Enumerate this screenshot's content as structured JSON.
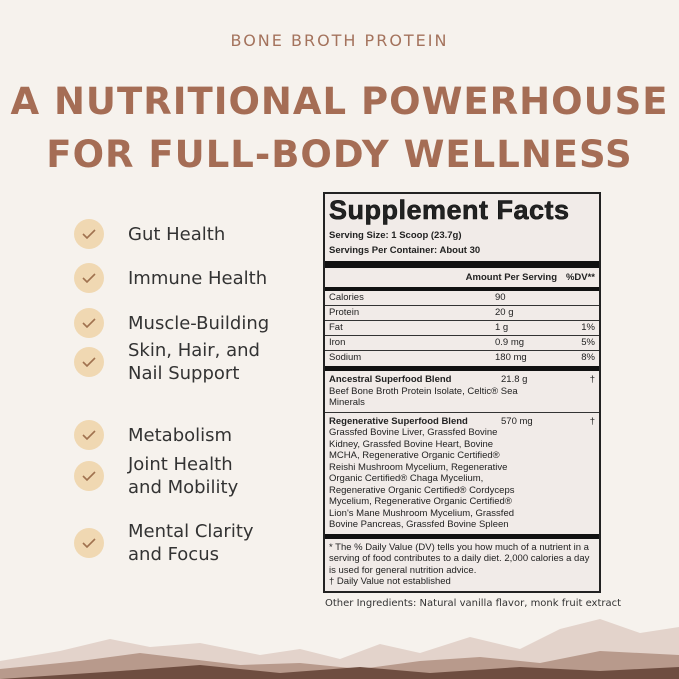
{
  "eyebrow": "BONE BROTH PROTEIN",
  "headline": [
    "A NUTRITIONAL POWERHOUSE",
    "FOR FULL-BODY WELLNESS"
  ],
  "benefits": [
    "Gut Health",
    "Immune Health",
    "Muscle-Building",
    "Skin, Hair, and\nNail Support",
    "Metabolism",
    "Joint Health\nand Mobility",
    "Mental Clarity\nand Focus"
  ],
  "icons": {
    "benefit": "check-icon"
  },
  "colors": {
    "accent": "#a56d55",
    "check_bg": "#f0d8b2",
    "check": "#a0724f"
  },
  "facts": {
    "title": "Supplement Facts",
    "serving_size": "Serving Size: 1 Scoop (23.7g)",
    "servings_per_container": "Servings Per Container: About 30",
    "amount_header": "Amount Per Serving",
    "dv_header": "%DV**",
    "nutrients": [
      {
        "name": "Calories",
        "amount": "90",
        "dv": ""
      },
      {
        "name": "Protein",
        "amount": "20 g",
        "dv": ""
      },
      {
        "name": "Fat",
        "amount": "1 g",
        "dv": "1%"
      },
      {
        "name": "Iron",
        "amount": "0.9 mg",
        "dv": "5%"
      },
      {
        "name": "Sodium",
        "amount": "180 mg",
        "dv": "8%"
      }
    ],
    "blends": [
      {
        "name": "Ancestral Superfood Blend",
        "amount": "21.8 g",
        "dv": "†",
        "ingredients": "Beef Bone Broth Protein Isolate, Celtic® Sea Minerals"
      },
      {
        "name": "Regenerative Superfood Blend",
        "amount": "570 mg",
        "dv": "†",
        "ingredients": "Grassfed Bovine Liver, Grassfed Bovine Kidney, Grassfed Bovine Heart, Bovine MCHA, Regenerative Organic Certified® Reishi Mushroom Mycelium, Regenerative Organic Certified® Chaga Mycelium, Regenerative Organic Certified® Cordyceps Mycelium, Regenerative Organic Certified® Lion's Mane Mushroom Mycelium, Grassfed Bovine Pancreas, Grassfed Bovine Spleen"
      }
    ],
    "footnote": "* The % Daily Value (DV) tells you how much of a nutrient in a serving of food contributes to a daily diet. 2,000 calories a day is used for general nutrition advice.",
    "dagger_note": "† Daily Value not established"
  },
  "other_ingredients": "Other Ingredients: Natural vanilla flavor, monk fruit extract"
}
